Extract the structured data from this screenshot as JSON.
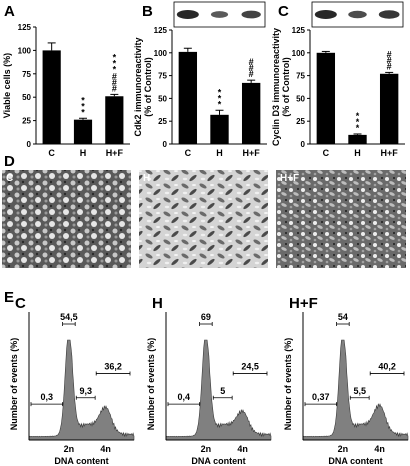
{
  "panels": {
    "A": "A",
    "B": "B",
    "C": "C",
    "D": "D",
    "E": "E"
  },
  "micrograph_labels": [
    "C",
    "H",
    "H+F"
  ],
  "chart_data": [
    {
      "type": "bar",
      "panel": "A",
      "categories": [
        "C",
        "H",
        "H+F"
      ],
      "values": [
        100,
        26,
        51
      ],
      "errors": [
        8,
        1.5,
        2
      ],
      "significance": [
        "",
        "***",
        "***\n###"
      ],
      "ylabel": "Viable cells (%)",
      "ylim": [
        0,
        125
      ],
      "yticks": [
        0,
        25,
        50,
        75,
        100,
        125
      ],
      "blot": false
    },
    {
      "type": "bar",
      "panel": "B",
      "categories": [
        "C",
        "H",
        "H+F"
      ],
      "values": [
        101,
        32,
        67
      ],
      "errors": [
        4,
        5,
        3
      ],
      "significance": [
        "",
        "***",
        "###"
      ],
      "ylabel": "Cdk2 immunoreactivity\n(% of Control)",
      "ylim": [
        0,
        125
      ],
      "yticks": [
        0,
        25,
        50,
        75,
        100,
        125
      ],
      "blot": true,
      "blot_intensity": [
        1.0,
        0.45,
        0.7
      ]
    },
    {
      "type": "bar",
      "panel": "C",
      "categories": [
        "C",
        "H",
        "H+F"
      ],
      "values": [
        100,
        10,
        77
      ],
      "errors": [
        1.5,
        1,
        1.5
      ],
      "significance": [
        "",
        "***",
        "###"
      ],
      "ylabel": "Cyclin D3 immunoreactivity\n(% of Control)",
      "ylim": [
        0,
        125
      ],
      "yticks": [
        0,
        25,
        50,
        75,
        100,
        125
      ],
      "blot": true,
      "blot_intensity": [
        1.0,
        0.6,
        0.85
      ]
    },
    {
      "type": "area",
      "panel": "E-C",
      "title": "C",
      "xlabel": "DNA content",
      "ylabel": "Number of events (%)",
      "xticks": [
        "2n",
        "4n"
      ],
      "peak_heights": [
        1.0,
        0.24
      ],
      "annotations": [
        "0,3",
        "54,5",
        "9,3",
        "36,2"
      ]
    },
    {
      "type": "area",
      "panel": "E-H",
      "title": "H",
      "xlabel": "DNA content",
      "ylabel": "Number of events (%)",
      "xticks": [
        "2n",
        "4n"
      ],
      "peak_heights": [
        1.0,
        0.2
      ],
      "annotations": [
        "0,4",
        "69",
        "5",
        "24,5"
      ]
    },
    {
      "type": "area",
      "panel": "E-HF",
      "title": "H+F",
      "xlabel": "DNA content",
      "ylabel": "Number of events (%)",
      "xticks": [
        "2n",
        "4n"
      ],
      "peak_heights": [
        1.0,
        0.26
      ],
      "annotations": [
        "0,37",
        "54",
        "5,5",
        "40,2"
      ]
    }
  ]
}
